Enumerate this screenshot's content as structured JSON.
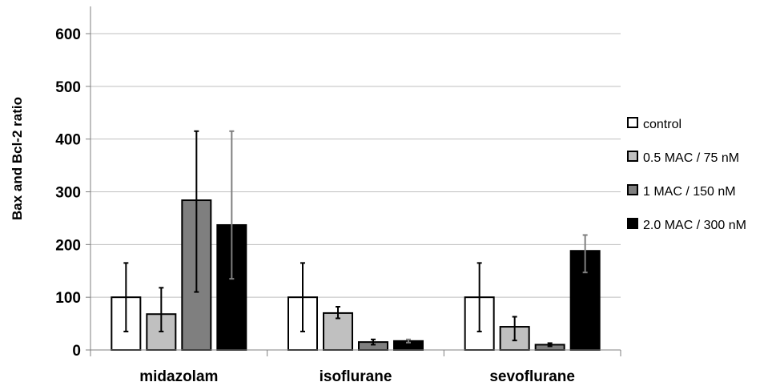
{
  "chart_data": {
    "type": "bar",
    "title": "",
    "xlabel": "",
    "ylabel": "Bax and Bcl-2 ratio",
    "ylim": [
      0,
      600
    ],
    "yticks": [
      0,
      100,
      200,
      300,
      400,
      500,
      600
    ],
    "grid": true,
    "legend_position": "right",
    "categories": [
      "midazolam",
      "isoflurane",
      "sevoflurane"
    ],
    "series": [
      {
        "name": "control",
        "values": [
          100,
          100,
          100
        ],
        "error_low": [
          35,
          35,
          35
        ],
        "error_high": [
          165,
          165,
          165
        ],
        "color": "#ffffff",
        "error_color": "#000000"
      },
      {
        "name": "0.5 MAC / 75 nM",
        "values": [
          68,
          70,
          44
        ],
        "error_low": [
          35,
          60,
          18
        ],
        "error_high": [
          118,
          82,
          63
        ],
        "color": "#c0c0c0",
        "error_color": "#000000"
      },
      {
        "name": "1 MAC / 150 nM",
        "values": [
          284,
          15,
          10
        ],
        "error_low": [
          110,
          10,
          7
        ],
        "error_high": [
          415,
          20,
          13
        ],
        "color": "#7f7f7f",
        "error_color": "#000000"
      },
      {
        "name": "2.0 MAC / 300 nM",
        "values": [
          237,
          17,
          188
        ],
        "error_low": [
          135,
          14,
          147
        ],
        "error_high": [
          415,
          20,
          218
        ],
        "color": "#000000",
        "error_color": "#7f7f7f"
      }
    ]
  }
}
